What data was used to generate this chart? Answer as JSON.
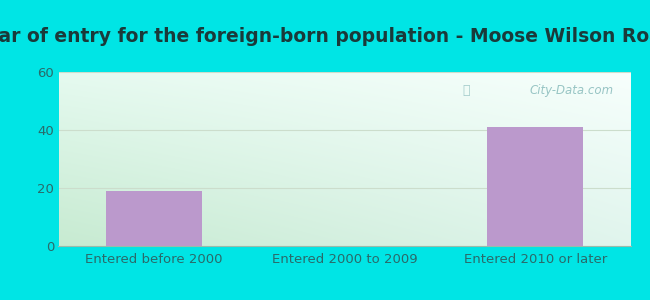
{
  "title": "Year of entry for the foreign-born population - Moose Wilson Road",
  "categories": [
    "Entered before 2000",
    "Entered 2000 to 2009",
    "Entered 2010 or later"
  ],
  "values": [
    19,
    0,
    41
  ],
  "bar_color": "#bb99cc",
  "ylim": [
    0,
    60
  ],
  "yticks": [
    0,
    20,
    40,
    60
  ],
  "outer_bg_color": "#00e5e5",
  "title_fontsize": 13.5,
  "tick_fontsize": 9.5,
  "watermark": "City-Data.com",
  "title_color": "#1a3a3a",
  "tick_color": "#2a6a6a",
  "grid_color": "#ccddcc",
  "bg_top": "#f0faf8",
  "bg_bottom": "#d0eed8"
}
